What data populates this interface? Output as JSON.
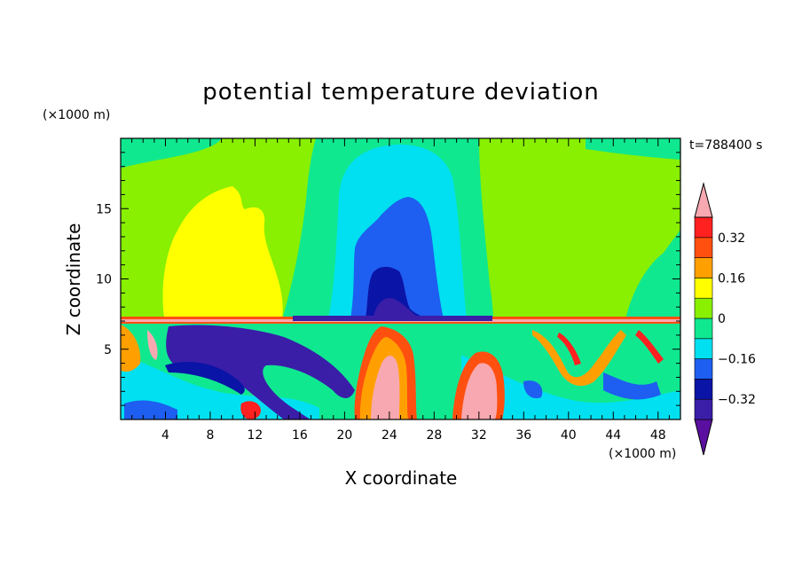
{
  "chart_data": {
    "type": "heatmap",
    "title": "potential temperature deviation",
    "xlabel": "X coordinate",
    "ylabel": "Z coordinate",
    "x_unit_label": "(×1000 m)",
    "y_unit_label": "(×1000 m)",
    "time_label": "t=788400 s",
    "xlim": [
      0,
      50
    ],
    "ylim": [
      0,
      20
    ],
    "x_ticks": [
      4,
      8,
      12,
      16,
      20,
      24,
      28,
      32,
      36,
      40,
      44,
      48
    ],
    "y_ticks": [
      5,
      10,
      15
    ],
    "colorbar": {
      "levels": [
        -0.4,
        -0.32,
        -0.24,
        -0.16,
        -0.08,
        0,
        0.08,
        0.16,
        0.24,
        0.32,
        0.4
      ],
      "labels": [
        "0.32",
        "0.16",
        "0",
        "−0.16",
        "−0.32"
      ],
      "label_values": [
        0.32,
        0.16,
        0,
        -0.16,
        -0.32
      ],
      "colors_low_to_high": [
        "#5a0fa0",
        "#3a1ea8",
        "#0a14a6",
        "#1e5ef0",
        "#00e0f0",
        "#10e890",
        "#88f000",
        "#ffff00",
        "#ffa000",
        "#ff5010",
        "#ff2020",
        "#f8a8b0"
      ],
      "extend": "both"
    },
    "regions": [
      {
        "feature": "background",
        "value": 0.04
      },
      {
        "feature": "upper-left warm plume",
        "value": 0.2,
        "x": [
          5,
          14
        ],
        "z": [
          7.2,
          16.5
        ]
      },
      {
        "feature": "central cold column",
        "value": -0.2,
        "x": [
          21,
          30
        ],
        "z": [
          7,
          17.5
        ]
      },
      {
        "feature": "central cold core",
        "value": -0.34,
        "x": [
          22.5,
          26
        ],
        "z": [
          7,
          10.8
        ]
      },
      {
        "feature": "right warm plume",
        "value": 0.1,
        "x": [
          44,
          50
        ],
        "z": [
          7,
          14
        ]
      },
      {
        "feature": "lower-left cold band",
        "value": -0.38,
        "x": [
          4,
          21
        ],
        "z": [
          1,
          7
        ]
      },
      {
        "feature": "central warm column",
        "value": 0.36,
        "x": [
          22,
          26
        ],
        "z": [
          0,
          6
        ]
      },
      {
        "feature": "warm blob",
        "value": 0.36,
        "x": [
          30,
          33
        ],
        "z": [
          0.5,
          4.5
        ]
      }
    ]
  }
}
